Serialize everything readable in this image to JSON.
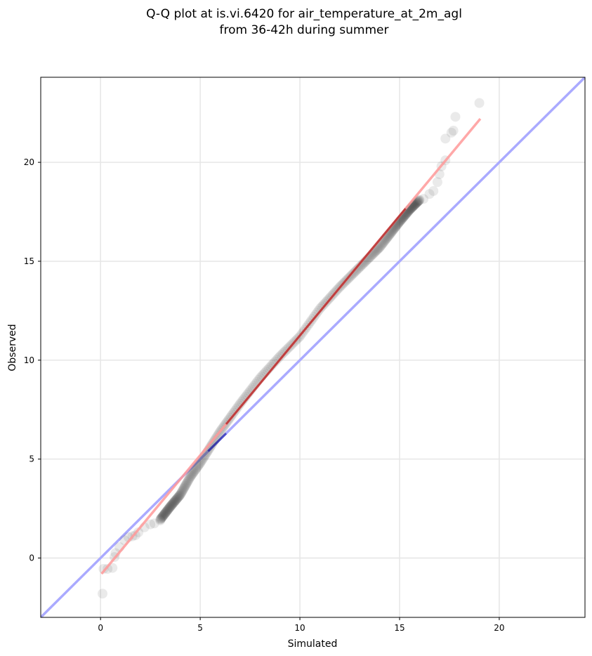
{
  "chart_data": {
    "type": "scatter",
    "title_line1": "Q-Q plot at is.vi.6420 for air_temperature_at_2m_agl",
    "title_line2": "from 36-42h during summer",
    "xlabel": "Simulated",
    "ylabel": "Observed",
    "xlim": [
      -3.0,
      24.3
    ],
    "ylim": [
      -3.0,
      24.3
    ],
    "xticks": [
      0,
      5,
      10,
      15,
      20
    ],
    "yticks": [
      0,
      5,
      10,
      15,
      20
    ],
    "grid": true,
    "colors": {
      "points": "#333333",
      "identity_line": "#aaaaff",
      "fit_line": "#ff9999",
      "fit_line_dark": "#990000",
      "identity_dark": "#000099"
    },
    "identity_line": {
      "x": [
        -3.0,
        24.3
      ],
      "y": [
        -3.0,
        24.3
      ]
    },
    "fit_line": {
      "x": [
        0.05,
        19.05
      ],
      "y": [
        -0.8,
        22.2
      ]
    },
    "outliers": [
      [
        0.1,
        -1.8
      ],
      [
        0.15,
        -0.55
      ],
      [
        0.35,
        -0.55
      ],
      [
        0.6,
        -0.5
      ],
      [
        0.7,
        0.05
      ],
      [
        0.75,
        0.25
      ],
      [
        0.95,
        0.55
      ],
      [
        1.2,
        0.9
      ],
      [
        1.4,
        1.05
      ],
      [
        1.6,
        1.1
      ],
      [
        1.75,
        1.15
      ],
      [
        1.9,
        1.3
      ],
      [
        2.2,
        1.55
      ],
      [
        2.5,
        1.7
      ],
      [
        2.7,
        1.75
      ],
      [
        3.0,
        1.9
      ],
      [
        16.2,
        18.15
      ],
      [
        16.5,
        18.4
      ],
      [
        16.7,
        18.55
      ],
      [
        16.9,
        19.0
      ],
      [
        17.0,
        19.4
      ],
      [
        17.1,
        19.8
      ],
      [
        17.3,
        20.1
      ],
      [
        17.3,
        21.2
      ],
      [
        17.6,
        21.5
      ],
      [
        17.7,
        21.6
      ],
      [
        17.8,
        22.3
      ],
      [
        19.0,
        23.0
      ]
    ],
    "quantile_curve": {
      "x": [
        3.0,
        3.5,
        4.0,
        4.5,
        5.0,
        5.5,
        6.0,
        6.5,
        7.0,
        8.0,
        9.0,
        10.0,
        11.0,
        12.0,
        13.0,
        14.0,
        15.0,
        15.5,
        16.0
      ],
      "y": [
        1.95,
        2.6,
        3.2,
        4.1,
        4.8,
        5.6,
        6.4,
        7.1,
        7.8,
        9.1,
        10.2,
        11.2,
        12.6,
        13.7,
        14.7,
        15.7,
        17.0,
        17.6,
        18.1
      ]
    },
    "quantile_count": 300
  }
}
